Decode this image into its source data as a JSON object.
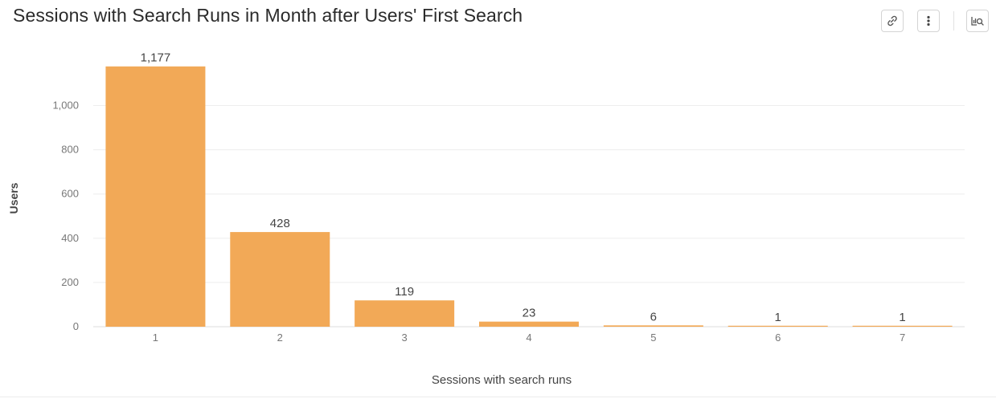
{
  "title": "Sessions with Search Runs in Month after Users' First Search",
  "toolbar": {
    "icons": [
      "link-icon",
      "more-vertical-icon",
      "explore-chart-icon"
    ]
  },
  "colors": {
    "bar": "#f2a957",
    "grid": "#ededed",
    "tick_text": "#777777",
    "axis_title": "#444444",
    "data_label": "#444444"
  },
  "chart_data": {
    "type": "bar",
    "categories": [
      "1",
      "2",
      "3",
      "4",
      "5",
      "6",
      "7"
    ],
    "values": [
      1177,
      428,
      119,
      23,
      6,
      1,
      1
    ],
    "data_labels": [
      "1,177",
      "428",
      "119",
      "23",
      "6",
      "1",
      "1"
    ],
    "xlabel": "Sessions with search runs",
    "ylabel": "Users",
    "ylim": [
      0,
      1200
    ],
    "yticks": [
      0,
      200,
      400,
      600,
      800,
      1000
    ],
    "ytick_labels": [
      "0",
      "200",
      "400",
      "600",
      "800",
      "1,000"
    ],
    "grid": true,
    "legend": "none"
  }
}
